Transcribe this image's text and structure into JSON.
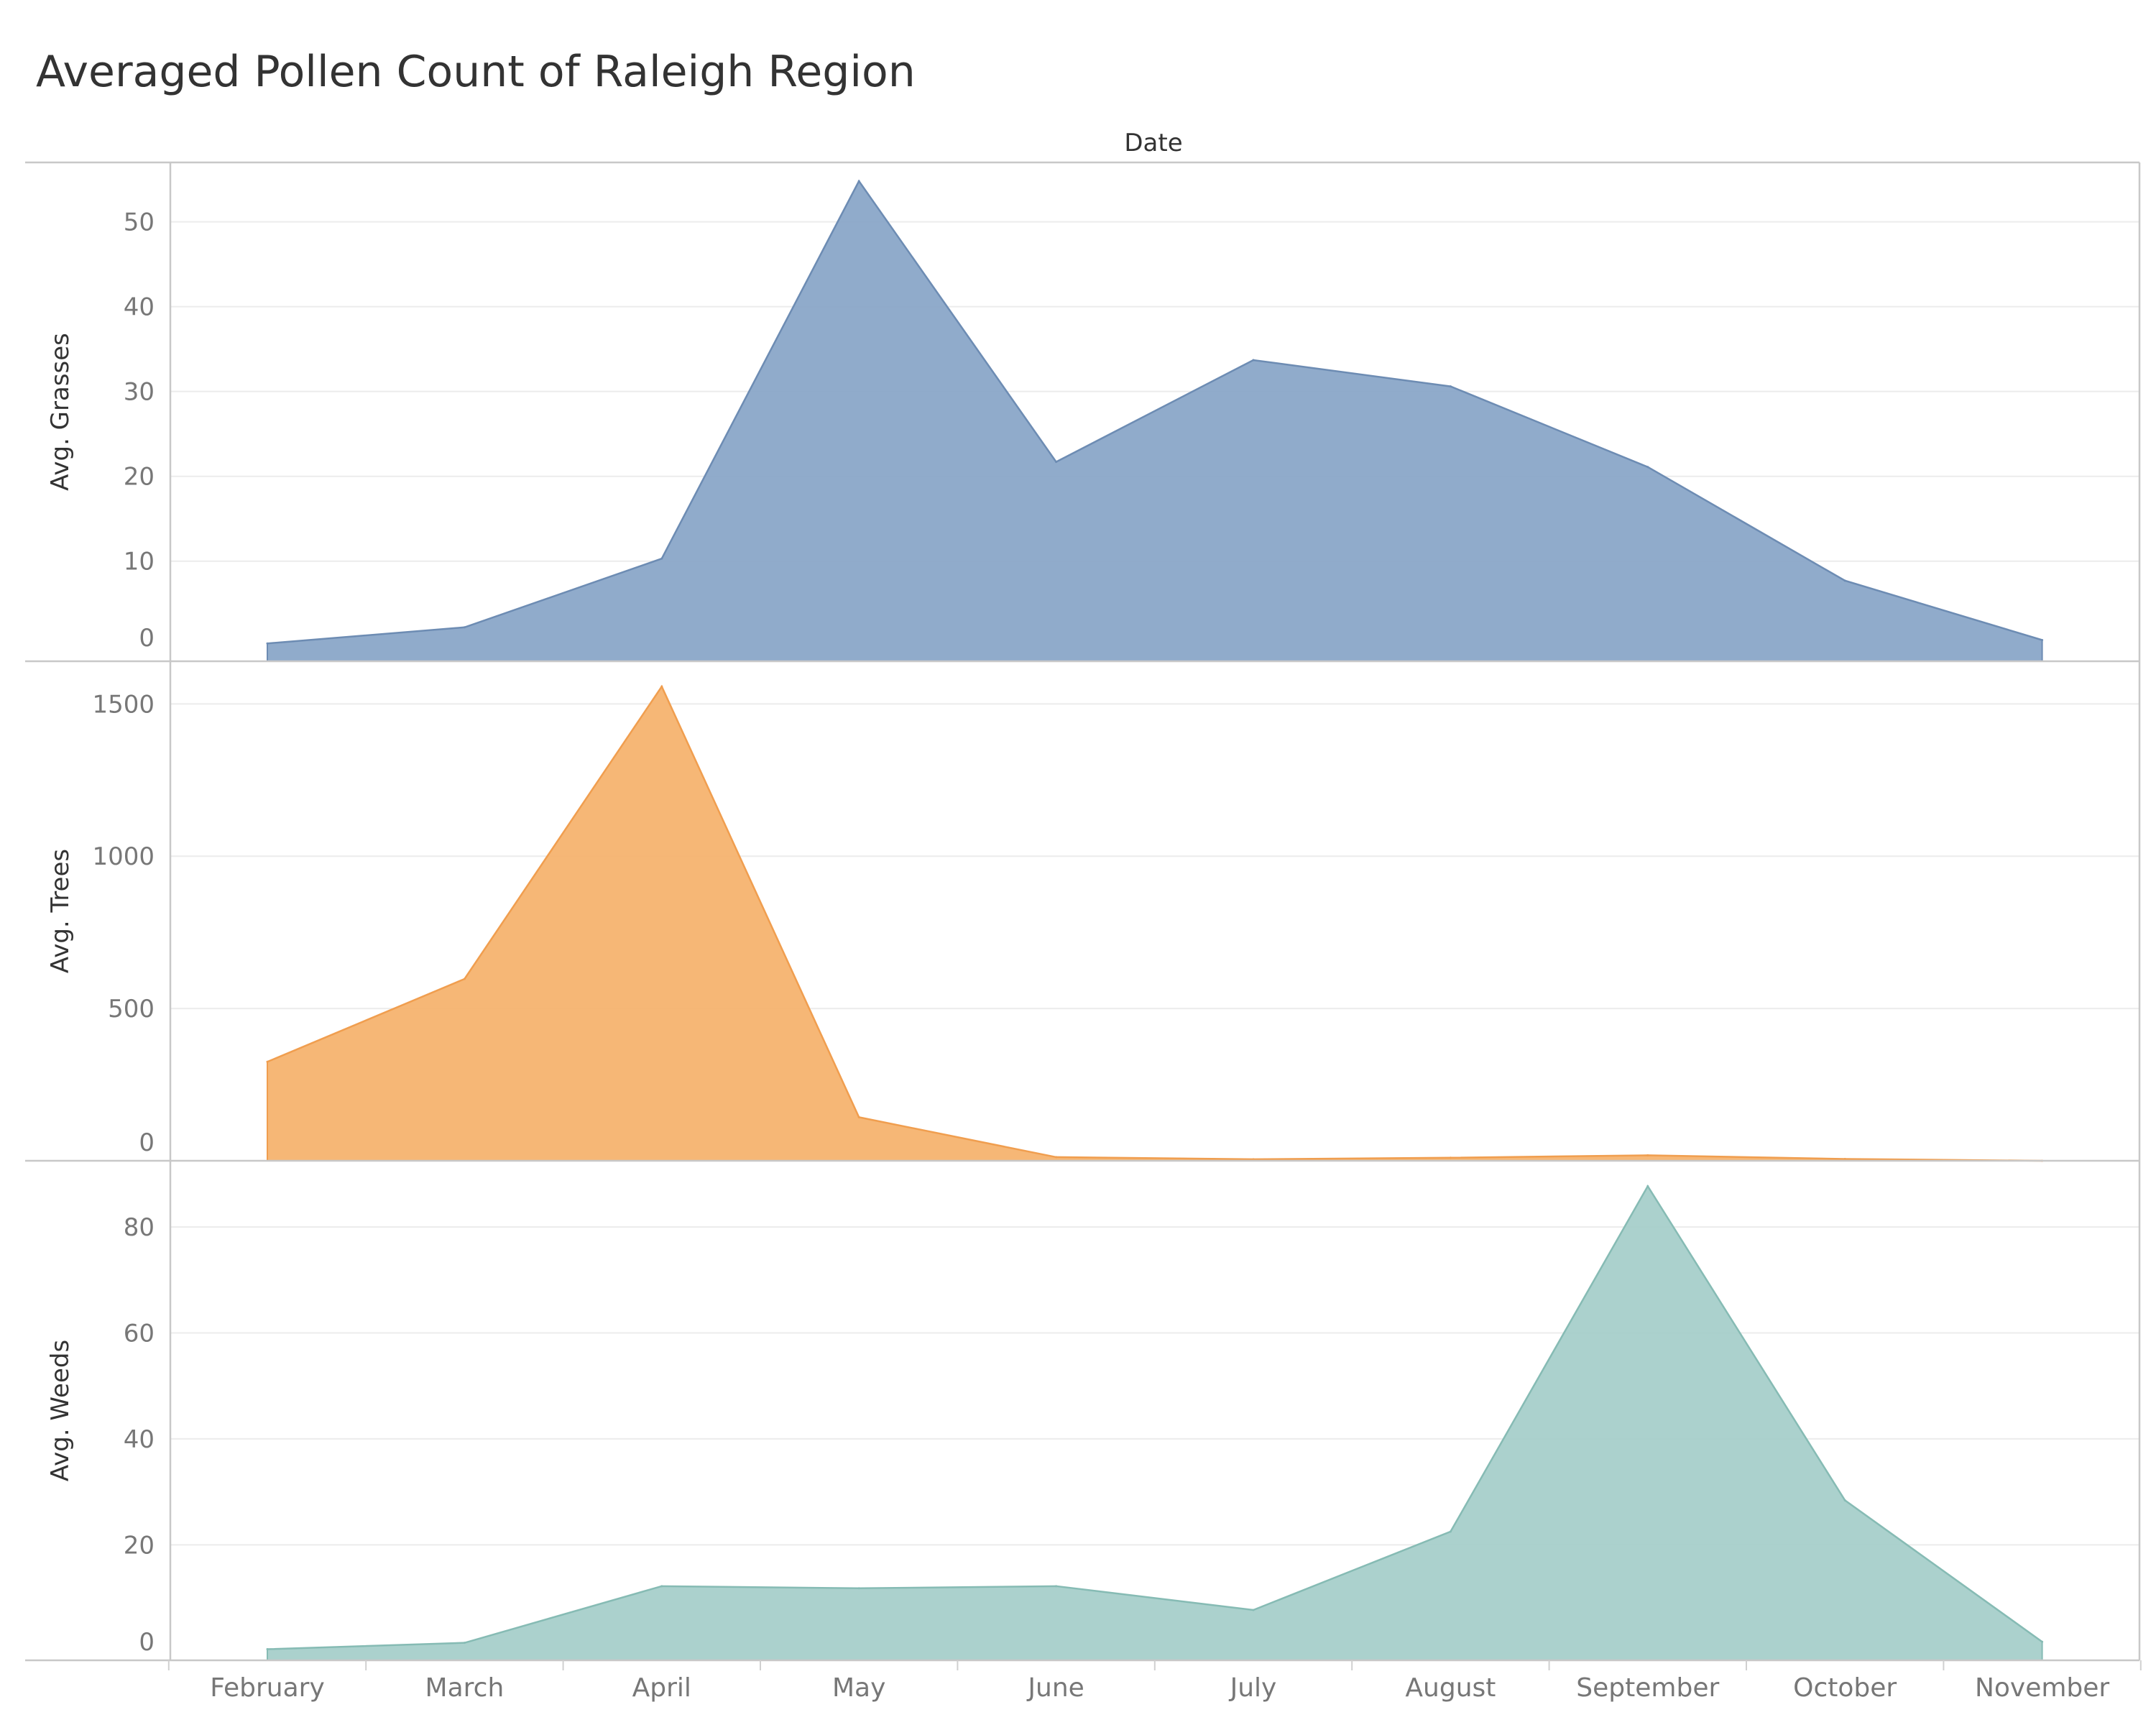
{
  "chart_data": {
    "type": "area",
    "title": "Averaged Pollen Count of Raleigh Region",
    "column_header": "Date",
    "categories": [
      "February",
      "March",
      "April",
      "May",
      "June",
      "July",
      "August",
      "September",
      "October",
      "November"
    ],
    "series": [
      {
        "name": "",
        "ylabel": "Avg. Grasses",
        "color": "#8aa6c8",
        "line_color": "#6d8cb3",
        "values": [
          0.3,
          2.2,
          10.3,
          54.8,
          21.7,
          33.7,
          30.6,
          21.1,
          7.7,
          0.7
        ],
        "ylim": [
          -1.8,
          57.0
        ],
        "ticks": [
          0,
          10,
          20,
          30,
          40,
          50
        ]
      },
      {
        "name": "",
        "ylabel": "Avg. Trees",
        "color": "#f5b36f",
        "line_color": "#f09e4f",
        "values": [
          325,
          597,
          1557,
          143,
          12,
          5,
          10,
          18,
          6,
          0
        ],
        "ylim": [
          0,
          1640
        ],
        "ticks": [
          0,
          500,
          1000,
          1500
        ]
      },
      {
        "name": "",
        "ylabel": "Avg. Weeds",
        "color": "#a6cfca",
        "line_color": "#86bbb4",
        "values": [
          0.3,
          1.5,
          12.2,
          11.8,
          12.2,
          7.7,
          22.5,
          87.7,
          28.4,
          1.7
        ],
        "ylim": [
          -1.8,
          92.5
        ],
        "ticks": [
          0,
          20,
          40,
          60,
          80
        ]
      }
    ]
  }
}
